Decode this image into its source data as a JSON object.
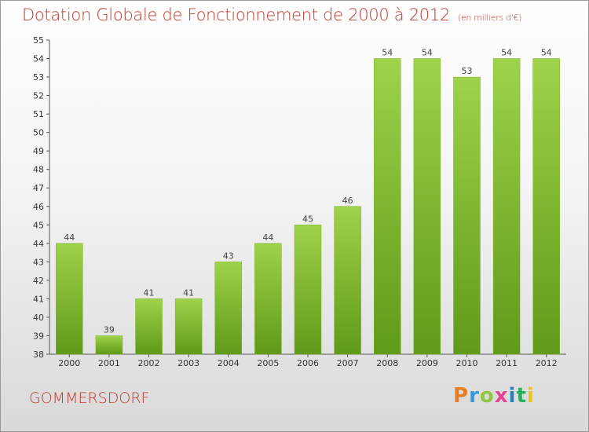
{
  "title": "Dotation Globale de Fonctionnement de 2000 à 2012",
  "subtitle": "(en milliers d'€)",
  "town": "GOMMERSDORF",
  "logo": {
    "letters": [
      "P",
      "r",
      "o",
      "x",
      "i",
      "t",
      "i"
    ],
    "alt": "Proxiti"
  },
  "colors": {
    "bar_light": "#9ed24a",
    "bar_dark": "#5f9a18",
    "title": "#c0392b"
  },
  "chart_data": {
    "type": "bar",
    "categories": [
      "2000",
      "2001",
      "2002",
      "2003",
      "2004",
      "2005",
      "2006",
      "2007",
      "2008",
      "2009",
      "2010",
      "2011",
      "2012"
    ],
    "values": [
      44,
      39,
      41,
      41,
      43,
      44,
      45,
      46,
      54,
      54,
      53,
      54,
      54
    ],
    "data_labels": [
      "44",
      "39",
      "41",
      "41",
      "43",
      "44",
      "45",
      "46",
      "54",
      "54",
      "53",
      "54",
      "54"
    ],
    "title": "Dotation Globale de Fonctionnement de 2000 à 2012",
    "subtitle": "(en milliers d'€)",
    "xlabel": "",
    "ylabel": "",
    "ylim": [
      38,
      55
    ],
    "yticks": [
      38,
      39,
      40,
      41,
      42,
      43,
      44,
      45,
      46,
      47,
      48,
      49,
      50,
      51,
      52,
      53,
      54,
      55
    ],
    "grid": false,
    "legend": "none"
  }
}
